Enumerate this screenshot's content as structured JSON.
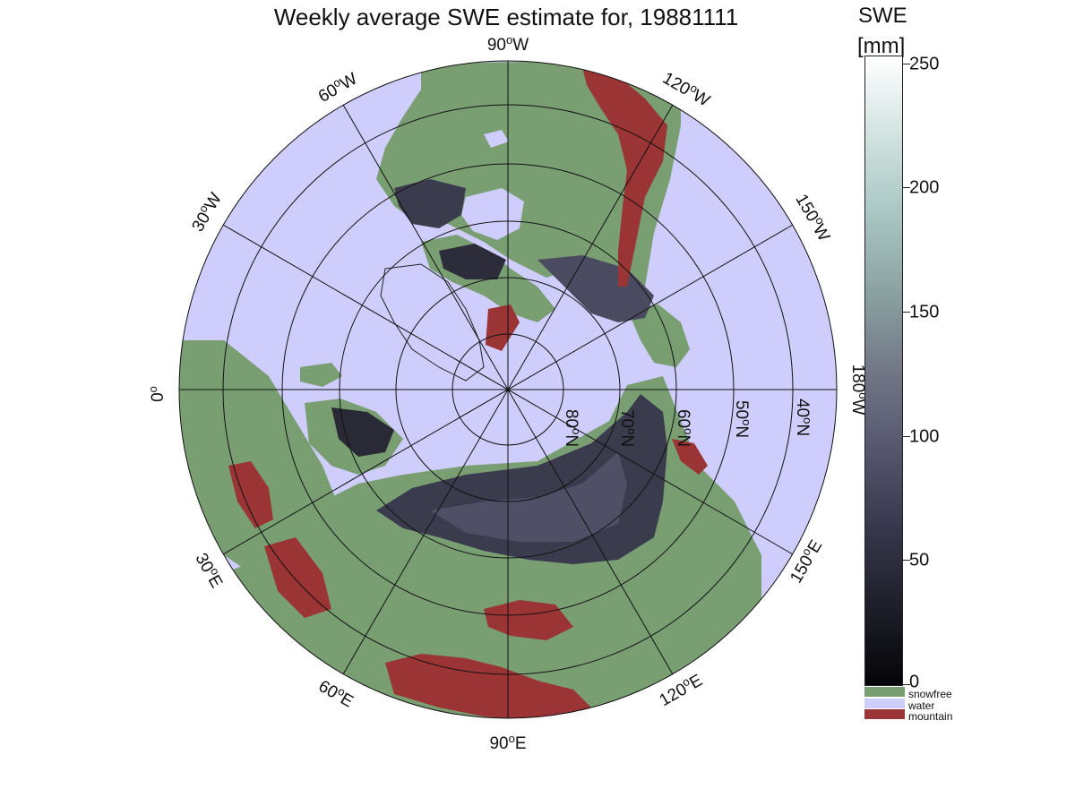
{
  "figure": {
    "title": "Weekly average SWE estimate for, 19881111"
  },
  "colorbar": {
    "title": "SWE",
    "unit": "[mm]",
    "min": 0,
    "max": 250,
    "ticks": [
      "0",
      "50",
      "100",
      "150",
      "200",
      "250"
    ],
    "gradient_stops": [
      "#050508",
      "#37374d",
      "#727786",
      "#a9c6c3",
      "#ffffff"
    ]
  },
  "legend": {
    "items": [
      {
        "label": "snowfree",
        "color": "#789e72"
      },
      {
        "label": "water",
        "color": "#cfcdfb"
      },
      {
        "label": "mountain",
        "color": "#9b3434"
      }
    ]
  },
  "map": {
    "projection": "north-polar-stereographic",
    "meridian_labels": [
      {
        "base": "90",
        "sup": "o",
        "dir": "W"
      },
      {
        "base": "120",
        "sup": "o",
        "dir": "W"
      },
      {
        "base": "150",
        "sup": "o",
        "dir": "W"
      },
      {
        "base": "180",
        "sup": "o",
        "dir": "W"
      },
      {
        "base": "150",
        "sup": "o",
        "dir": "E"
      },
      {
        "base": "120",
        "sup": "o",
        "dir": "E"
      },
      {
        "base": "90",
        "sup": "o",
        "dir": "E"
      },
      {
        "base": "60",
        "sup": "o",
        "dir": "E"
      },
      {
        "base": "30",
        "sup": "o",
        "dir": "E"
      },
      {
        "base": "0",
        "sup": "o",
        "dir": ""
      },
      {
        "base": "30",
        "sup": "o",
        "dir": "W"
      },
      {
        "base": "60",
        "sup": "o",
        "dir": "W"
      }
    ],
    "parallel_labels": [
      {
        "base": "80",
        "sup": "o",
        "dir": "N"
      },
      {
        "base": "70",
        "sup": "o",
        "dir": "N"
      },
      {
        "base": "60",
        "sup": "o",
        "dir": "N"
      },
      {
        "base": "50",
        "sup": "o",
        "dir": "N"
      },
      {
        "base": "40",
        "sup": "o",
        "dir": "N"
      }
    ],
    "colors": {
      "water": "#cfcdfb",
      "snowfree": "#789e72",
      "mountain": "#9b3434",
      "snow_shallow": "#22222e",
      "snow_mid": "#4a4a60",
      "snow_deep": "#6a6a82"
    }
  }
}
